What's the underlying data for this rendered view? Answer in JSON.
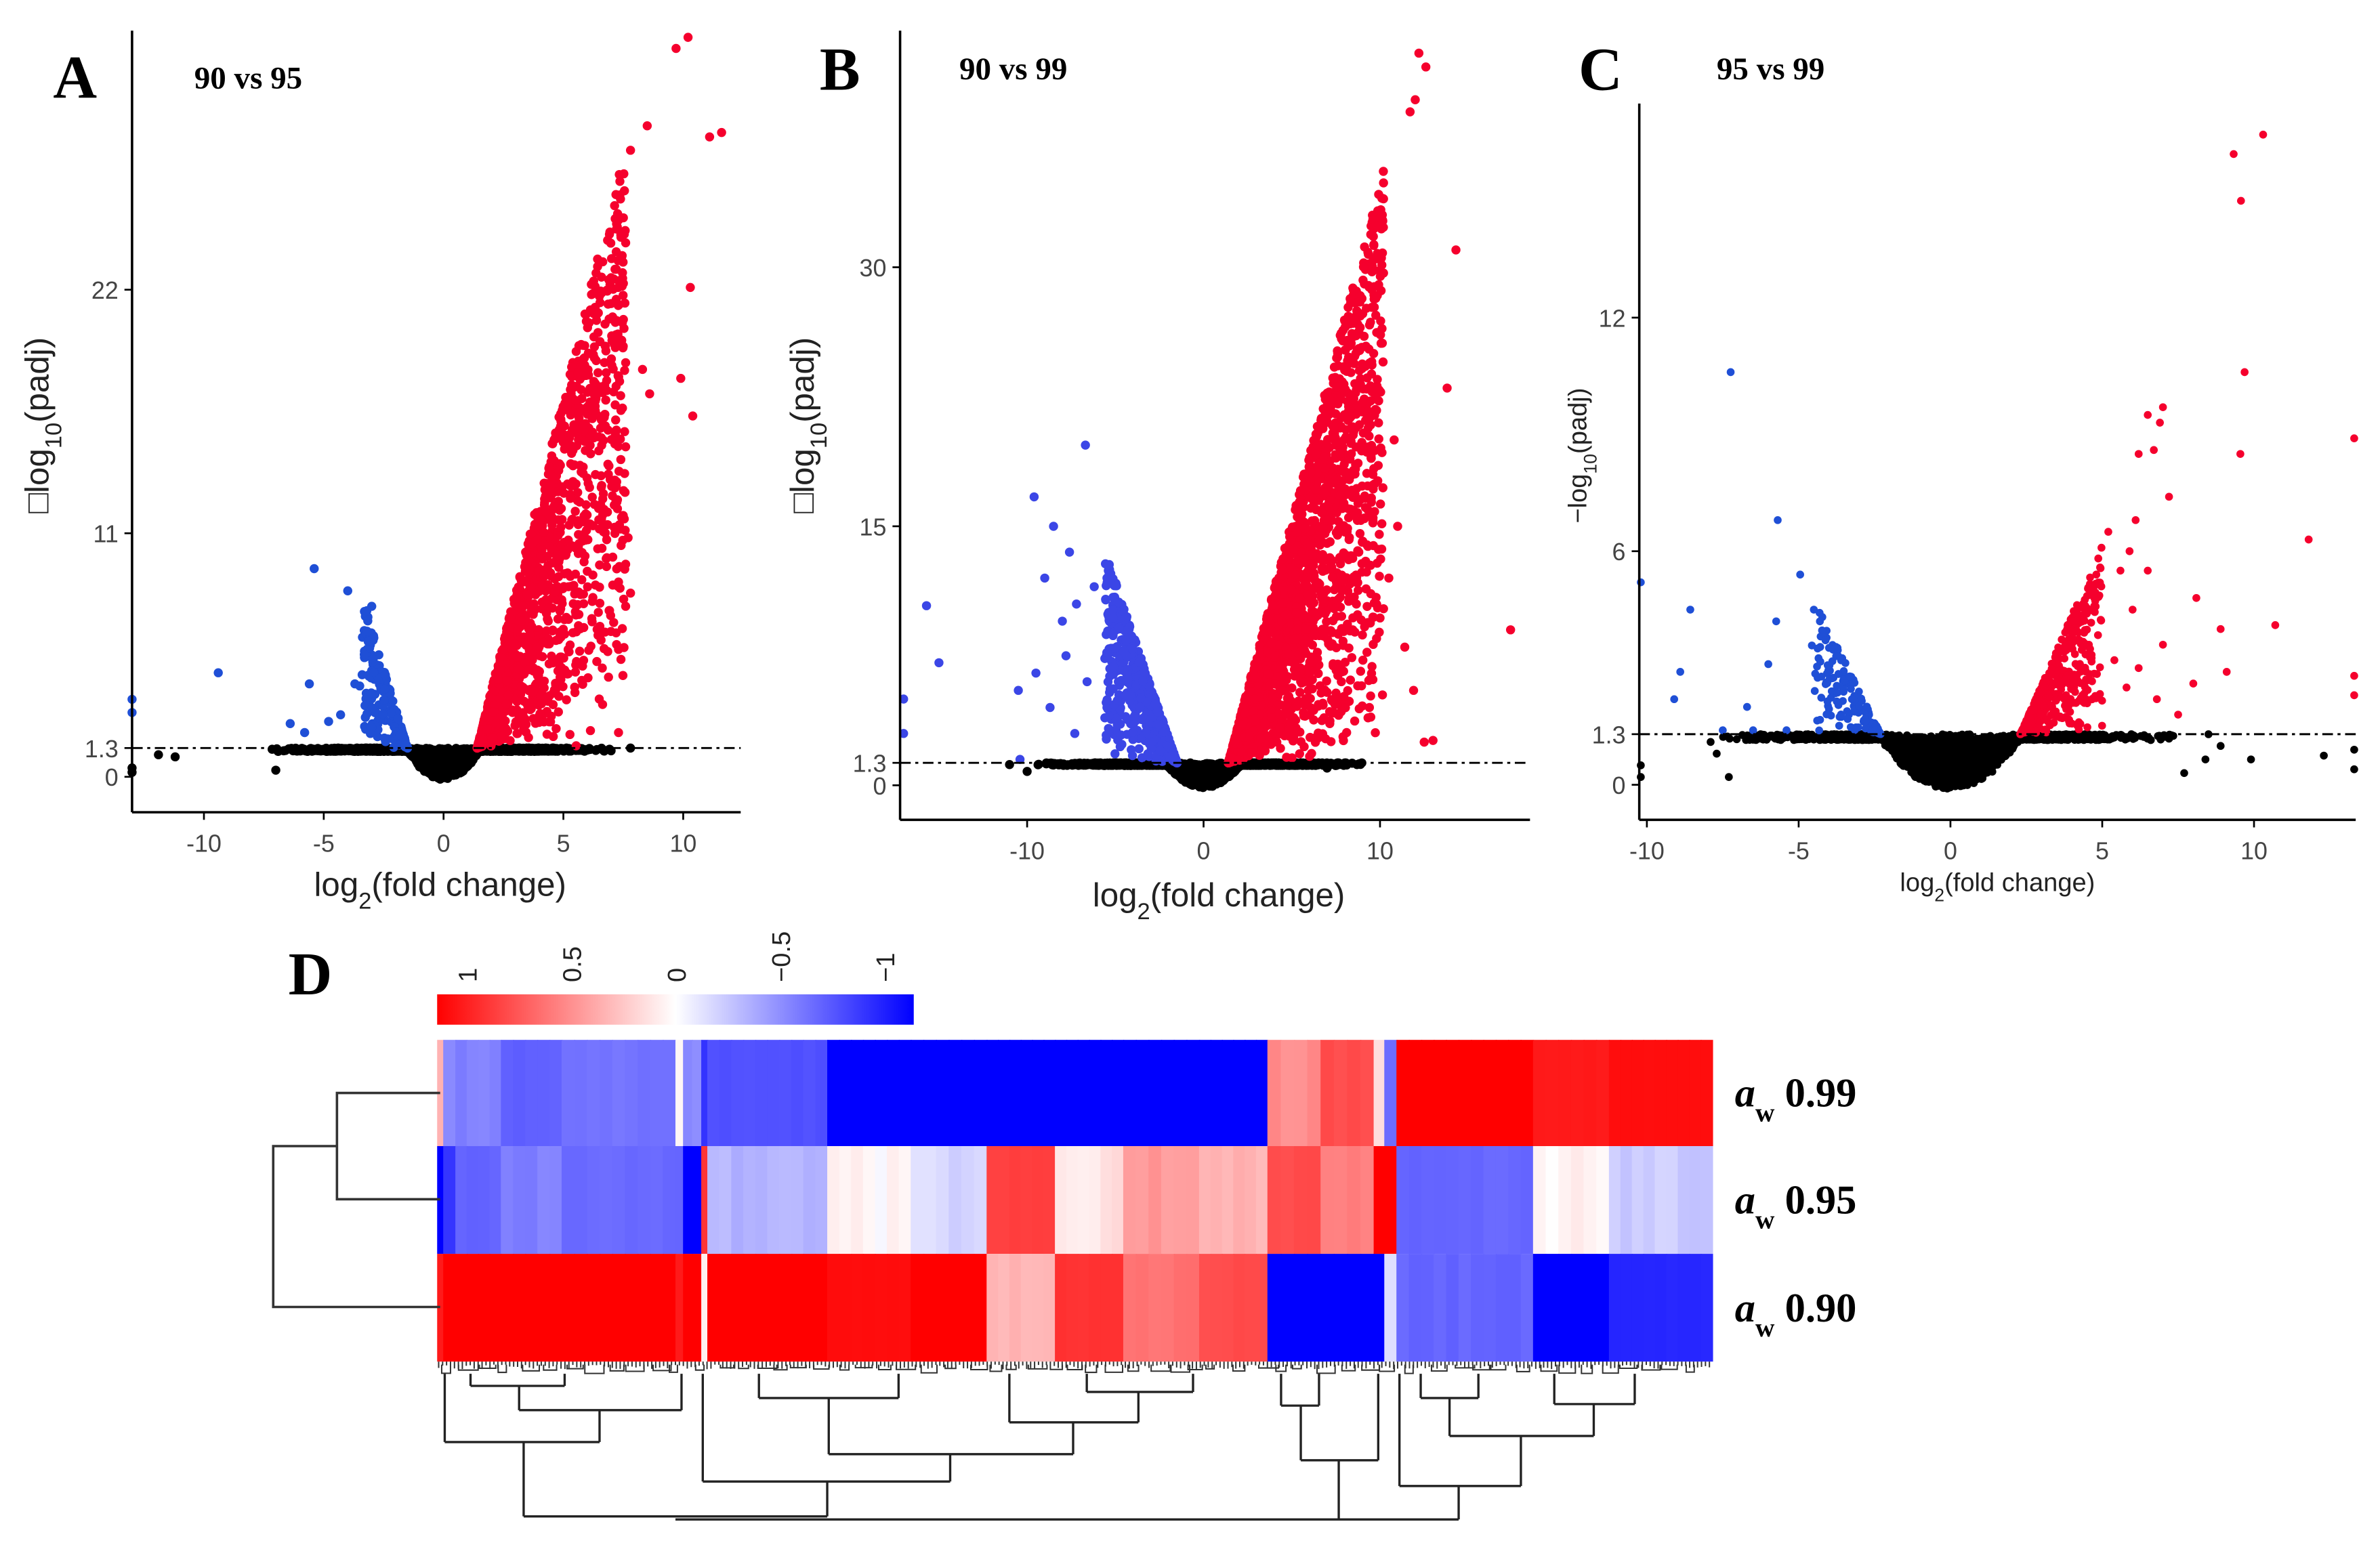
{
  "chart_data": [
    {
      "panel": "A",
      "type": "scatter",
      "title": "90 vs 95",
      "xlabel": {
        "pre": "log",
        "sub": "2",
        "post": "(fold change)"
      },
      "ylabel": {
        "pre": "□log",
        "sub": "10",
        "post": "(padj)"
      },
      "xticks": [
        -10,
        -5,
        0,
        5,
        10
      ],
      "yticks": [
        0,
        1.3,
        11,
        22
      ],
      "xlim": [
        -13,
        12.4
      ],
      "ylim": [
        -1.6,
        33.7
      ],
      "threshold": 1.3,
      "colors": {
        "up": "#f5002d",
        "down": "#1f4fd6",
        "ns": "#000000"
      },
      "clouds": {
        "ns": {
          "n": 2600,
          "sd": 2.4,
          "xmax": 7.2,
          "gap": 0.58
        },
        "up": {
          "n": 1500,
          "x_start": 1.4,
          "x_end": 7.6,
          "slope": 4.4
        },
        "down": {
          "n": 180,
          "x_start": -1.5,
          "x_end": -3.4,
          "slope": 3.6
        }
      },
      "outliers": {
        "up": [
          [
            10.2,
            33.4
          ],
          [
            9.7,
            32.9
          ],
          [
            8.5,
            29.4
          ],
          [
            11.1,
            28.9
          ],
          [
            11.6,
            29.1
          ],
          [
            7.8,
            28.3
          ],
          [
            9.9,
            18
          ],
          [
            10.4,
            16.3
          ],
          [
            10.3,
            22.1
          ],
          [
            8.6,
            17.3
          ],
          [
            8.3,
            18.4
          ],
          [
            7.6,
            18.7
          ],
          [
            7.5,
            11.8
          ],
          [
            7.7,
            10.8
          ],
          [
            7.6,
            9.6
          ],
          [
            7.3,
            8.8
          ],
          [
            7.8,
            8.3
          ],
          [
            7.6,
            7.7
          ],
          [
            7.2,
            6.5
          ],
          [
            7.4,
            5.3
          ],
          [
            7.3,
            2.0
          ],
          [
            6.5,
            11.2
          ],
          [
            6.8,
            9.5
          ],
          [
            6.2,
            7.0
          ],
          [
            5.8,
            5.0
          ]
        ],
        "down": [
          [
            -5.4,
            9.4
          ],
          [
            -4.0,
            8.4
          ],
          [
            -9.4,
            4.7
          ],
          [
            -3.0,
            7.7
          ],
          [
            -3.2,
            7.5
          ],
          [
            -5.6,
            4.2
          ],
          [
            -13,
            3.5
          ],
          [
            -13,
            2.9
          ],
          [
            -6.4,
            2.4
          ],
          [
            -5.8,
            2.0
          ],
          [
            -4.8,
            2.5
          ],
          [
            -4.3,
            2.8
          ],
          [
            -3.7,
            4.2
          ],
          [
            -3.5,
            4.1
          ]
        ],
        "ns": [
          [
            -11.9,
            1.0
          ],
          [
            -11.2,
            0.9
          ],
          [
            7.8,
            1.3
          ],
          [
            -13,
            0.4
          ],
          [
            -13,
            0.2
          ],
          [
            -7,
            0.3
          ]
        ]
      }
    },
    {
      "panel": "B",
      "type": "scatter",
      "title": "90 vs 99",
      "xlabel": {
        "pre": "log",
        "sub": "2",
        "post": "(fold change)"
      },
      "ylabel": {
        "pre": "□log",
        "sub": "10",
        "post": "(padj)"
      },
      "xticks": [
        -10,
        0,
        10
      ],
      "yticks": [
        0,
        1.3,
        15,
        30
      ],
      "xlim": [
        -17.2,
        18.5
      ],
      "ylim": [
        -2.0,
        43.7
      ],
      "threshold": 1.3,
      "colors": {
        "up": "#f5002d",
        "down": "#3b46e6",
        "ns": "#000000"
      },
      "clouds": {
        "ns": {
          "n": 2600,
          "sd": 3.2,
          "xmax": 10,
          "gap": 0.3
        },
        "up": {
          "n": 2200,
          "x_start": 1.4,
          "x_end": 10.2,
          "slope": 3.9
        },
        "down": {
          "n": 600,
          "x_start": -1.5,
          "x_end": -5.6,
          "slope": 3.0
        }
      },
      "outliers": {
        "up": [
          [
            12.2,
            42.4
          ],
          [
            12.6,
            41.6
          ],
          [
            12.0,
            39.7
          ],
          [
            11.7,
            39
          ],
          [
            10.1,
            34
          ],
          [
            14.3,
            31
          ],
          [
            13.8,
            23
          ],
          [
            17.4,
            9
          ],
          [
            12.5,
            2.5
          ],
          [
            13.0,
            2.6
          ],
          [
            11.4,
            8
          ],
          [
            9.8,
            8.5
          ],
          [
            11.9,
            5.5
          ],
          [
            10.5,
            12
          ],
          [
            11,
            15
          ],
          [
            9.6,
            18
          ],
          [
            10.8,
            20
          ],
          [
            9.4,
            4.5
          ],
          [
            8.9,
            6.6
          ]
        ],
        "down": [
          [
            -6.7,
            19.7
          ],
          [
            -9.6,
            16.7
          ],
          [
            -8.5,
            15
          ],
          [
            -7.6,
            13.5
          ],
          [
            -15.7,
            10.4
          ],
          [
            -15.0,
            7.1
          ],
          [
            -10.4,
            1.5
          ],
          [
            -17,
            5
          ],
          [
            -17,
            3
          ],
          [
            -9.0,
            12
          ],
          [
            -8.0,
            9.5
          ],
          [
            -10.5,
            5.5
          ],
          [
            -9.5,
            6.5
          ],
          [
            -7.2,
            10.5
          ],
          [
            -6.2,
            11.5
          ],
          [
            -8.7,
            4.5
          ],
          [
            -7.8,
            7.5
          ],
          [
            -6.6,
            6
          ],
          [
            -7.3,
            3
          ]
        ],
        "ns": [
          [
            -11,
            1.2
          ],
          [
            -10,
            0.8
          ],
          [
            7,
            1.0
          ]
        ]
      }
    },
    {
      "panel": "C",
      "type": "scatter",
      "title": "95 vs 99",
      "xlabel": {
        "pre": "log",
        "sub": "2",
        "post": "(fold change)"
      },
      "ylabel": {
        "pre": "−log",
        "sub": "10",
        "post": "(padj)"
      },
      "xticks": [
        -10,
        -5,
        0,
        5,
        10
      ],
      "yticks": [
        0,
        1.3,
        6,
        12
      ],
      "xlim": [
        -10.25,
        13.35
      ],
      "ylim": [
        -0.9,
        17.5
      ],
      "threshold": 1.3,
      "colors": {
        "up": "#f5002d",
        "down": "#1f4fd6",
        "ns": "#000000"
      },
      "clouds": {
        "ns": {
          "n": 2600,
          "sd": 2.6,
          "xmax": 7.5,
          "gap": 0.25
        },
        "up": {
          "n": 450,
          "x_start": 2.3,
          "x_end": 5.0,
          "slope": 1.8
        },
        "down": {
          "n": 160,
          "x_start": -2.3,
          "x_end": -4.6,
          "slope": 1.6
        }
      },
      "outliers": {
        "up": [
          [
            10.3,
            16.7
          ],
          [
            9.33,
            16.2
          ],
          [
            9.57,
            15.0
          ],
          [
            9.69,
            10.6
          ],
          [
            9.55,
            8.5
          ],
          [
            13.3,
            8.9
          ],
          [
            11.8,
            6.3
          ],
          [
            10.7,
            4.1
          ],
          [
            7.0,
            9.7
          ],
          [
            6.5,
            9.5
          ],
          [
            6.9,
            9.3
          ],
          [
            6.7,
            8.6
          ],
          [
            6.2,
            8.5
          ],
          [
            7.2,
            7.4
          ],
          [
            6.1,
            6.8
          ],
          [
            5.2,
            6.5
          ],
          [
            5.9,
            6.0
          ],
          [
            8.1,
            4.8
          ],
          [
            8.9,
            4.0
          ],
          [
            9.1,
            2.9
          ],
          [
            13.3,
            2.8
          ],
          [
            13.3,
            2.3
          ],
          [
            5.6,
            5.5
          ],
          [
            6.5,
            5.5
          ],
          [
            6.0,
            4.5
          ],
          [
            7.0,
            3.6
          ],
          [
            8.0,
            2.6
          ],
          [
            7.5,
            1.8
          ],
          [
            6.8,
            2.2
          ],
          [
            5.4,
            3.2
          ],
          [
            6.2,
            3.0
          ],
          [
            5.8,
            2.5
          ]
        ],
        "down": [
          [
            -7.24,
            10.6
          ],
          [
            -5.69,
            6.8
          ],
          [
            -4.95,
            5.4
          ],
          [
            -8.57,
            4.5
          ],
          [
            -10.2,
            5.2
          ],
          [
            -5.74,
            4.2
          ],
          [
            -8.9,
            2.9
          ],
          [
            -9.1,
            2.2
          ],
          [
            -6.0,
            3.1
          ],
          [
            -6.7,
            2.0
          ],
          [
            -7.5,
            1.4
          ],
          [
            -6.5,
            1.4
          ],
          [
            -5.4,
            1.4
          ],
          [
            -4.5,
            4.5
          ],
          [
            -4.3,
            4.2
          ]
        ],
        "ns": [
          [
            8.5,
            1.3
          ],
          [
            8.9,
            1.0
          ],
          [
            8.4,
            0.65
          ],
          [
            9.9,
            0.65
          ],
          [
            12.3,
            0.75
          ],
          [
            7.7,
            0.3
          ],
          [
            -7.9,
            1.1
          ],
          [
            -7.7,
            0.8
          ],
          [
            -7.3,
            0.2
          ],
          [
            -10.2,
            0.5
          ],
          [
            -10.2,
            0.2
          ],
          [
            13.3,
            0.4
          ],
          [
            13.3,
            0.9
          ]
        ]
      }
    },
    {
      "panel": "D",
      "type": "heatmap",
      "rows": [
        {
          "label_a": "a",
          "label_sub": "w",
          "label_val": " 0.99"
        },
        {
          "label_a": "a",
          "label_sub": "w",
          "label_val": " 0.95"
        },
        {
          "label_a": "a",
          "label_sub": "w",
          "label_val": " 0.90"
        }
      ],
      "colorbar": {
        "ticks": [
          "1",
          "0.5",
          "0",
          "−0.5",
          "−1"
        ],
        "high": "#ff0000",
        "mid": "#ffffff",
        "low": "#0000ff",
        "range": [
          -1,
          1
        ]
      },
      "blocks": [
        {
          "weight": 4,
          "values": [
            0.3,
            -1,
            0.9
          ]
        },
        {
          "weight": 8,
          "values": [
            -0.45,
            -0.8,
            1
          ]
        },
        {
          "weight": 30,
          "values": [
            -0.5,
            -0.6,
            1
          ]
        },
        {
          "weight": 40,
          "values": [
            -0.62,
            -0.5,
            1
          ]
        },
        {
          "weight": 75,
          "values": [
            -0.55,
            -0.58,
            1
          ]
        },
        {
          "weight": 5,
          "values": [
            0.05,
            -0.6,
            0.9
          ]
        },
        {
          "weight": 12,
          "values": [
            -0.45,
            -1,
            1
          ]
        },
        {
          "weight": 4,
          "values": [
            -0.8,
            0.8,
            0
          ]
        },
        {
          "weight": 79,
          "values": [
            -0.68,
            -0.3,
            1
          ]
        },
        {
          "weight": 55,
          "values": [
            -1,
            0.02,
            0.95
          ]
        },
        {
          "weight": 50,
          "values": [
            -1,
            -0.15,
            1
          ]
        },
        {
          "weight": 45,
          "values": [
            -1,
            0.75,
            0.3
          ]
        },
        {
          "weight": 45,
          "values": [
            -1,
            0.1,
            0.8
          ]
        },
        {
          "weight": 50,
          "values": [
            -1,
            0.4,
            0.55
          ]
        },
        {
          "weight": 45,
          "values": [
            -1,
            0.3,
            0.7
          ]
        },
        {
          "weight": 35,
          "values": [
            0.45,
            0.7,
            -1
          ]
        },
        {
          "weight": 35,
          "values": [
            0.7,
            0.5,
            -1
          ]
        },
        {
          "weight": 7,
          "values": [
            0.1,
            1,
            -1
          ]
        },
        {
          "weight": 8,
          "values": [
            -0.6,
            1,
            -0.1
          ]
        },
        {
          "weight": 90,
          "values": [
            1,
            -0.6,
            -0.6
          ]
        },
        {
          "weight": 50,
          "values": [
            0.9,
            0.05,
            -1
          ]
        },
        {
          "weight": 68,
          "values": [
            0.95,
            -0.2,
            -0.85
          ]
        }
      ]
    }
  ]
}
